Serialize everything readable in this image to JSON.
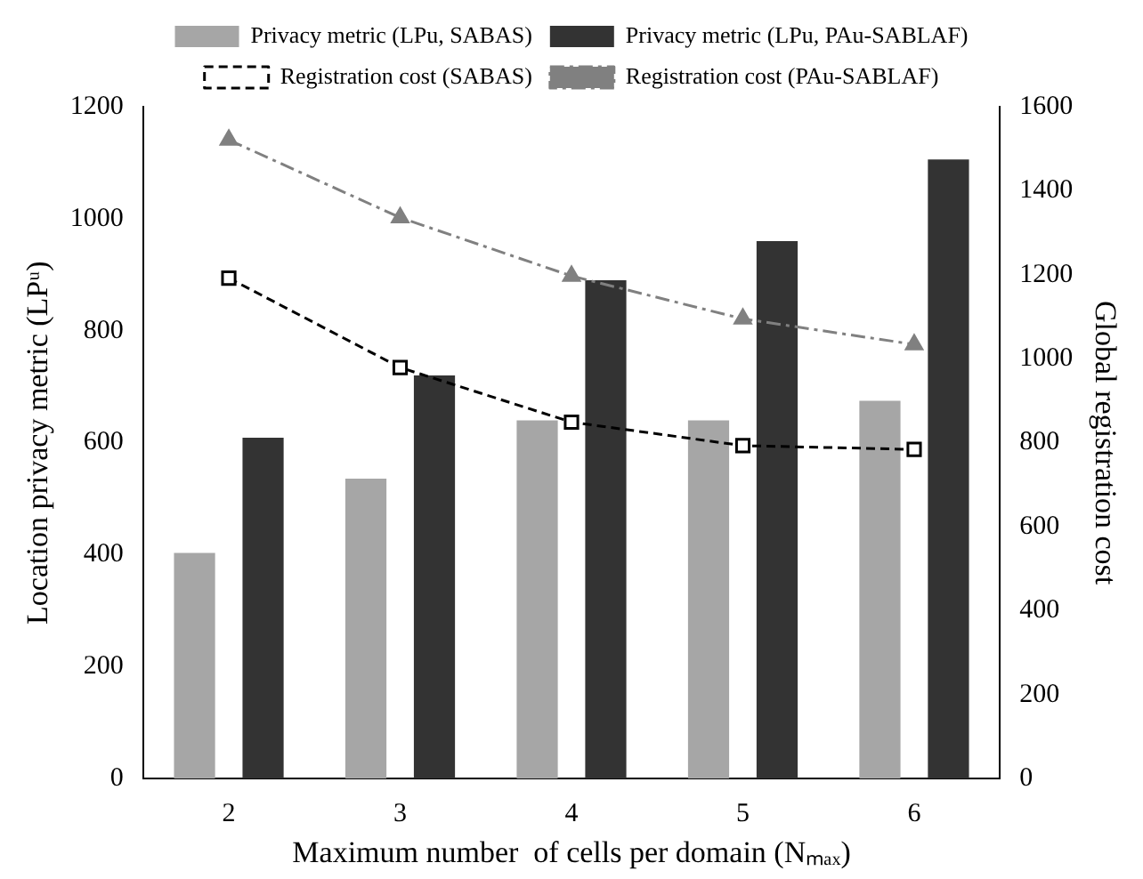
{
  "chart_data": {
    "type": "bar",
    "xlabel": "Maximum number  of cells per domain (Nₘₐₓ)",
    "ylabel": "Location privacy metric (LPᵘ)",
    "y2label": "Global registration cost",
    "categories": [
      "2",
      "3",
      "4",
      "5",
      "6"
    ],
    "series": [
      {
        "name": "Privacy metric (LPu, SABAS)",
        "color": "#a6a6a6",
        "values": [
          403,
          536,
          640,
          640,
          675
        ]
      },
      {
        "name": "Privacy metric (LPu, PAu-SABLAF)",
        "color": "#333333",
        "values": [
          609,
          720,
          890,
          960,
          1106
        ]
      },
      {
        "name": "Registration cost (SABAS)",
        "type": "line",
        "axis": "y2",
        "color": "#000000",
        "marker": "square",
        "line_style": "dashed",
        "values": [
          1192,
          979,
          849,
          793,
          784
        ]
      },
      {
        "name": "Registration cost (PAu-SABLAF)",
        "type": "line",
        "axis": "y2",
        "color": "#808080",
        "marker": "triangle",
        "line_style": "dashdot",
        "values": [
          1521,
          1336,
          1197,
          1095,
          1034
        ]
      }
    ],
    "ylim": [
      0,
      1200
    ],
    "yticks": [
      0,
      200,
      400,
      600,
      800,
      1000,
      1200
    ],
    "y2lim": [
      0,
      1600
    ],
    "y2ticks": [
      0,
      200,
      400,
      600,
      800,
      1000,
      1200,
      1400,
      1600
    ],
    "grid": false,
    "legend": "top"
  }
}
